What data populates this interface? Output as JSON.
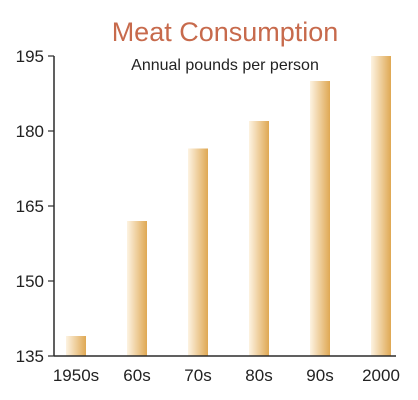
{
  "chart_data": {
    "type": "bar",
    "title": "Meat Consumption",
    "subtitle": "Annual pounds per person",
    "xlabel": "",
    "ylabel": "",
    "categories": [
      "1950s",
      "60s",
      "70s",
      "80s",
      "90s",
      "2000"
    ],
    "values": [
      139,
      162,
      176.5,
      182,
      190,
      195
    ],
    "ylim": [
      135,
      195
    ],
    "yticks": [
      135,
      150,
      165,
      180,
      195
    ],
    "grid": false,
    "legend": "none",
    "colors": {
      "title": "#c76a4c",
      "bar_light": "#fdf3e2",
      "bar_dark": "#dfa853",
      "axis": "#2b2b2b"
    }
  }
}
